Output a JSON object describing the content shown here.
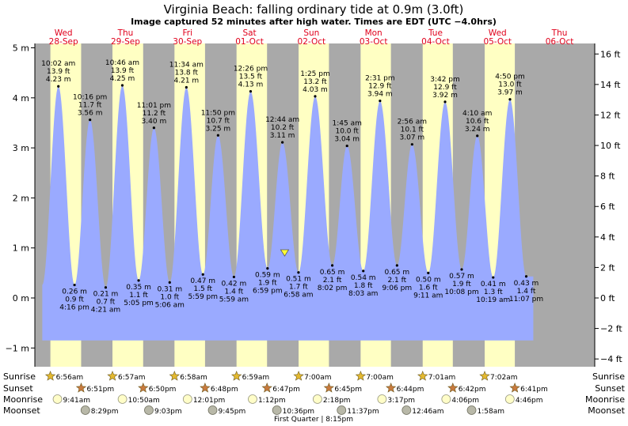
{
  "header": {
    "title": "Virginia Beach: falling  ordinary tide at 0.9m (3.0ft)",
    "subtitle": "Image captured 52 minutes after high water. Times are EDT (UTC −4.0hrs)"
  },
  "chart_data": {
    "type": "area",
    "y_left": {
      "unit": "m",
      "range": [
        -1.2,
        5.2
      ],
      "ticks": [
        5,
        4,
        3,
        2,
        1,
        0,
        -1
      ],
      "labels": [
        "5 m",
        "4 m",
        "3 m",
        "2 m",
        "1 m",
        "0 m",
        "−1 m"
      ]
    },
    "y_right": {
      "unit": "ft",
      "ticks": [
        16,
        14,
        12,
        10,
        8,
        6,
        4,
        2,
        0,
        -2,
        -4
      ],
      "labels": [
        "16 ft",
        "14 ft",
        "12 ft",
        "10 ft",
        "8 ft",
        "6 ft",
        "4 ft",
        "2 ft",
        "0 ft",
        "−2 ft",
        "−4 ft"
      ]
    },
    "days": [
      {
        "dow": "Wed",
        "date": "28-Sep"
      },
      {
        "dow": "Thu",
        "date": "29-Sep"
      },
      {
        "dow": "Fri",
        "date": "30-Sep"
      },
      {
        "dow": "Sat",
        "date": "01-Oct"
      },
      {
        "dow": "Sun",
        "date": "02-Oct"
      },
      {
        "dow": "Mon",
        "date": "03-Oct"
      },
      {
        "dow": "Tue",
        "date": "04-Oct"
      },
      {
        "dow": "Wed",
        "date": "05-Oct"
      },
      {
        "dow": "Thu",
        "date": "06-Oct"
      }
    ],
    "current": {
      "label": "falling ordinary tide",
      "height_m": 0.9,
      "height_ft": 3.0
    },
    "tides": [
      {
        "kind": "high",
        "time": "10:02 am",
        "ft": "13.9 ft",
        "m": "4.23 m",
        "day": 0.418,
        "h": 4.23
      },
      {
        "kind": "low",
        "time": "4:16 pm",
        "ft": "0.9 ft",
        "m": "0.26 m",
        "day": 0.678,
        "h": 0.26
      },
      {
        "kind": "high",
        "time": "10:16 pm",
        "ft": "11.7 ft",
        "m": "3.56 m",
        "day": 0.928,
        "h": 3.56
      },
      {
        "kind": "low",
        "time": "4:21 am",
        "ft": "0.7 ft",
        "m": "0.21 m",
        "day": 1.181,
        "h": 0.21
      },
      {
        "kind": "high",
        "time": "10:46 am",
        "ft": "13.9 ft",
        "m": "4.25 m",
        "day": 1.449,
        "h": 4.25
      },
      {
        "kind": "low",
        "time": "5:05 pm",
        "ft": "1.1 ft",
        "m": "0.35 m",
        "day": 1.712,
        "h": 0.35
      },
      {
        "kind": "high",
        "time": "11:01 pm",
        "ft": "11.2 ft",
        "m": "3.40 m",
        "day": 1.959,
        "h": 3.4
      },
      {
        "kind": "low",
        "time": "5:06 am",
        "ft": "1.0 ft",
        "m": "0.31 m",
        "day": 2.213,
        "h": 0.31
      },
      {
        "kind": "high",
        "time": "11:34 am",
        "ft": "13.8 ft",
        "m": "4.21 m",
        "day": 2.482,
        "h": 4.21
      },
      {
        "kind": "low",
        "time": "5:59 pm",
        "ft": "1.5 ft",
        "m": "0.47 m",
        "day": 2.749,
        "h": 0.47
      },
      {
        "kind": "high",
        "time": "11:50 pm",
        "ft": "10.7 ft",
        "m": "3.25 m",
        "day": 2.993,
        "h": 3.25
      },
      {
        "kind": "low",
        "time": "5:59 am",
        "ft": "1.4 ft",
        "m": "0.42 m",
        "day": 3.249,
        "h": 0.42
      },
      {
        "kind": "high",
        "time": "12:26 pm",
        "ft": "13.5 ft",
        "m": "4.13 m",
        "day": 3.518,
        "h": 4.13
      },
      {
        "kind": "low",
        "time": "6:59 pm",
        "ft": "1.9 ft",
        "m": "0.59 m",
        "day": 3.791,
        "h": 0.59
      },
      {
        "kind": "high",
        "time": "12:44 am",
        "ft": "10.2 ft",
        "m": "3.11 m",
        "day": 4.031,
        "h": 3.11
      },
      {
        "kind": "low",
        "time": "6:58 am",
        "ft": "1.7 ft",
        "m": "0.51 m",
        "day": 4.29,
        "h": 0.51
      },
      {
        "kind": "high",
        "time": "1:25 pm",
        "ft": "13.2 ft",
        "m": "4.03 m",
        "day": 4.559,
        "h": 4.03
      },
      {
        "kind": "low",
        "time": "8:02 pm",
        "ft": "2.1 ft",
        "m": "0.65 m",
        "day": 4.835,
        "h": 0.65
      },
      {
        "kind": "high",
        "time": "1:45 am",
        "ft": "10.0 ft",
        "m": "3.04 m",
        "day": 5.073,
        "h": 3.04
      },
      {
        "kind": "low",
        "time": "8:03 am",
        "ft": "1.8 ft",
        "m": "0.54 m",
        "day": 5.335,
        "h": 0.54
      },
      {
        "kind": "high",
        "time": "2:31 pm",
        "ft": "12.9 ft",
        "m": "3.94 m",
        "day": 5.605,
        "h": 3.94
      },
      {
        "kind": "low",
        "time": "9:06 pm",
        "ft": "2.1 ft",
        "m": "0.65 m",
        "day": 5.879,
        "h": 0.65
      },
      {
        "kind": "high",
        "time": "2:56 am",
        "ft": "10.1 ft",
        "m": "3.07 m",
        "day": 6.122,
        "h": 3.07
      },
      {
        "kind": "low",
        "time": "9:11 am",
        "ft": "1.6 ft",
        "m": "0.50 m",
        "day": 6.383,
        "h": 0.5
      },
      {
        "kind": "high",
        "time": "3:42 pm",
        "ft": "12.9 ft",
        "m": "3.92 m",
        "day": 6.654,
        "h": 3.92
      },
      {
        "kind": "low",
        "time": "10:08 pm",
        "ft": "1.9 ft",
        "m": "0.57 m",
        "day": 6.922,
        "h": 0.57
      },
      {
        "kind": "high",
        "time": "4:10 am",
        "ft": "10.6 ft",
        "m": "3.24 m",
        "day": 7.174,
        "h": 3.24
      },
      {
        "kind": "low",
        "time": "10:19 am",
        "ft": "1.3 ft",
        "m": "0.41 m",
        "day": 7.43,
        "h": 0.41
      },
      {
        "kind": "high",
        "time": "4:50 pm",
        "ft": "13.0 ft",
        "m": "3.97 m",
        "day": 7.701,
        "h": 3.97
      },
      {
        "kind": "low",
        "time": "11:07 pm",
        "ft": "1.4 ft",
        "m": "0.43 m",
        "day": 7.963,
        "h": 0.43
      }
    ]
  },
  "astro": {
    "row_labels": {
      "sunrise": "Sunrise",
      "sunset": "Sunset",
      "moonrise": "Moonrise",
      "moonset": "Moonset"
    },
    "sunrise": [
      {
        "time": "6:56am",
        "day": 0.289
      },
      {
        "time": "6:57am",
        "day": 1.29
      },
      {
        "time": "6:58am",
        "day": 2.29
      },
      {
        "time": "6:59am",
        "day": 3.291
      },
      {
        "time": "7:00am",
        "day": 4.292
      },
      {
        "time": "7:00am",
        "day": 5.292
      },
      {
        "time": "7:01am",
        "day": 6.293
      },
      {
        "time": "7:02am",
        "day": 7.293
      }
    ],
    "sunset": [
      {
        "time": "6:51pm",
        "day": 0.785
      },
      {
        "time": "6:50pm",
        "day": 1.785
      },
      {
        "time": "6:48pm",
        "day": 2.783
      },
      {
        "time": "6:47pm",
        "day": 3.783
      },
      {
        "time": "6:45pm",
        "day": 4.781
      },
      {
        "time": "6:44pm",
        "day": 5.781
      },
      {
        "time": "6:42pm",
        "day": 6.779
      },
      {
        "time": "6:41pm",
        "day": 7.779
      }
    ],
    "moonrise": [
      {
        "time": "9:41am",
        "day": 0.403
      },
      {
        "time": "10:50am",
        "day": 1.451
      },
      {
        "time": "12:01pm",
        "day": 2.501
      },
      {
        "time": "1:12pm",
        "day": 3.55
      },
      {
        "time": "2:18pm",
        "day": 4.596
      },
      {
        "time": "3:17pm",
        "day": 5.637
      },
      {
        "time": "4:06pm",
        "day": 6.671
      },
      {
        "time": "4:46pm",
        "day": 7.699
      }
    ],
    "moonset": [
      {
        "time": "8:29pm",
        "day": 0.853
      },
      {
        "time": "9:03pm",
        "day": 1.877
      },
      {
        "time": "9:45pm",
        "day": 2.906
      },
      {
        "time": "10:36pm",
        "day": 3.942
      },
      {
        "time": "11:37pm",
        "day": 4.984
      },
      {
        "time": "12:46am",
        "day": 6.032
      },
      {
        "time": "1:58am",
        "day": 7.082
      }
    ],
    "phase_note": "First Quarter | 8:15pm"
  },
  "colors": {
    "night": "#a9a9a9",
    "day": "#ffffc3",
    "water": "#9aaaff",
    "day_label": "#e0001b",
    "sunrise_star": "#e4b92f",
    "sunset_star": "#c87a3e",
    "moonrise": "#fffdc8",
    "moonset": "#b8b8a8",
    "marker": "#ffff33"
  }
}
